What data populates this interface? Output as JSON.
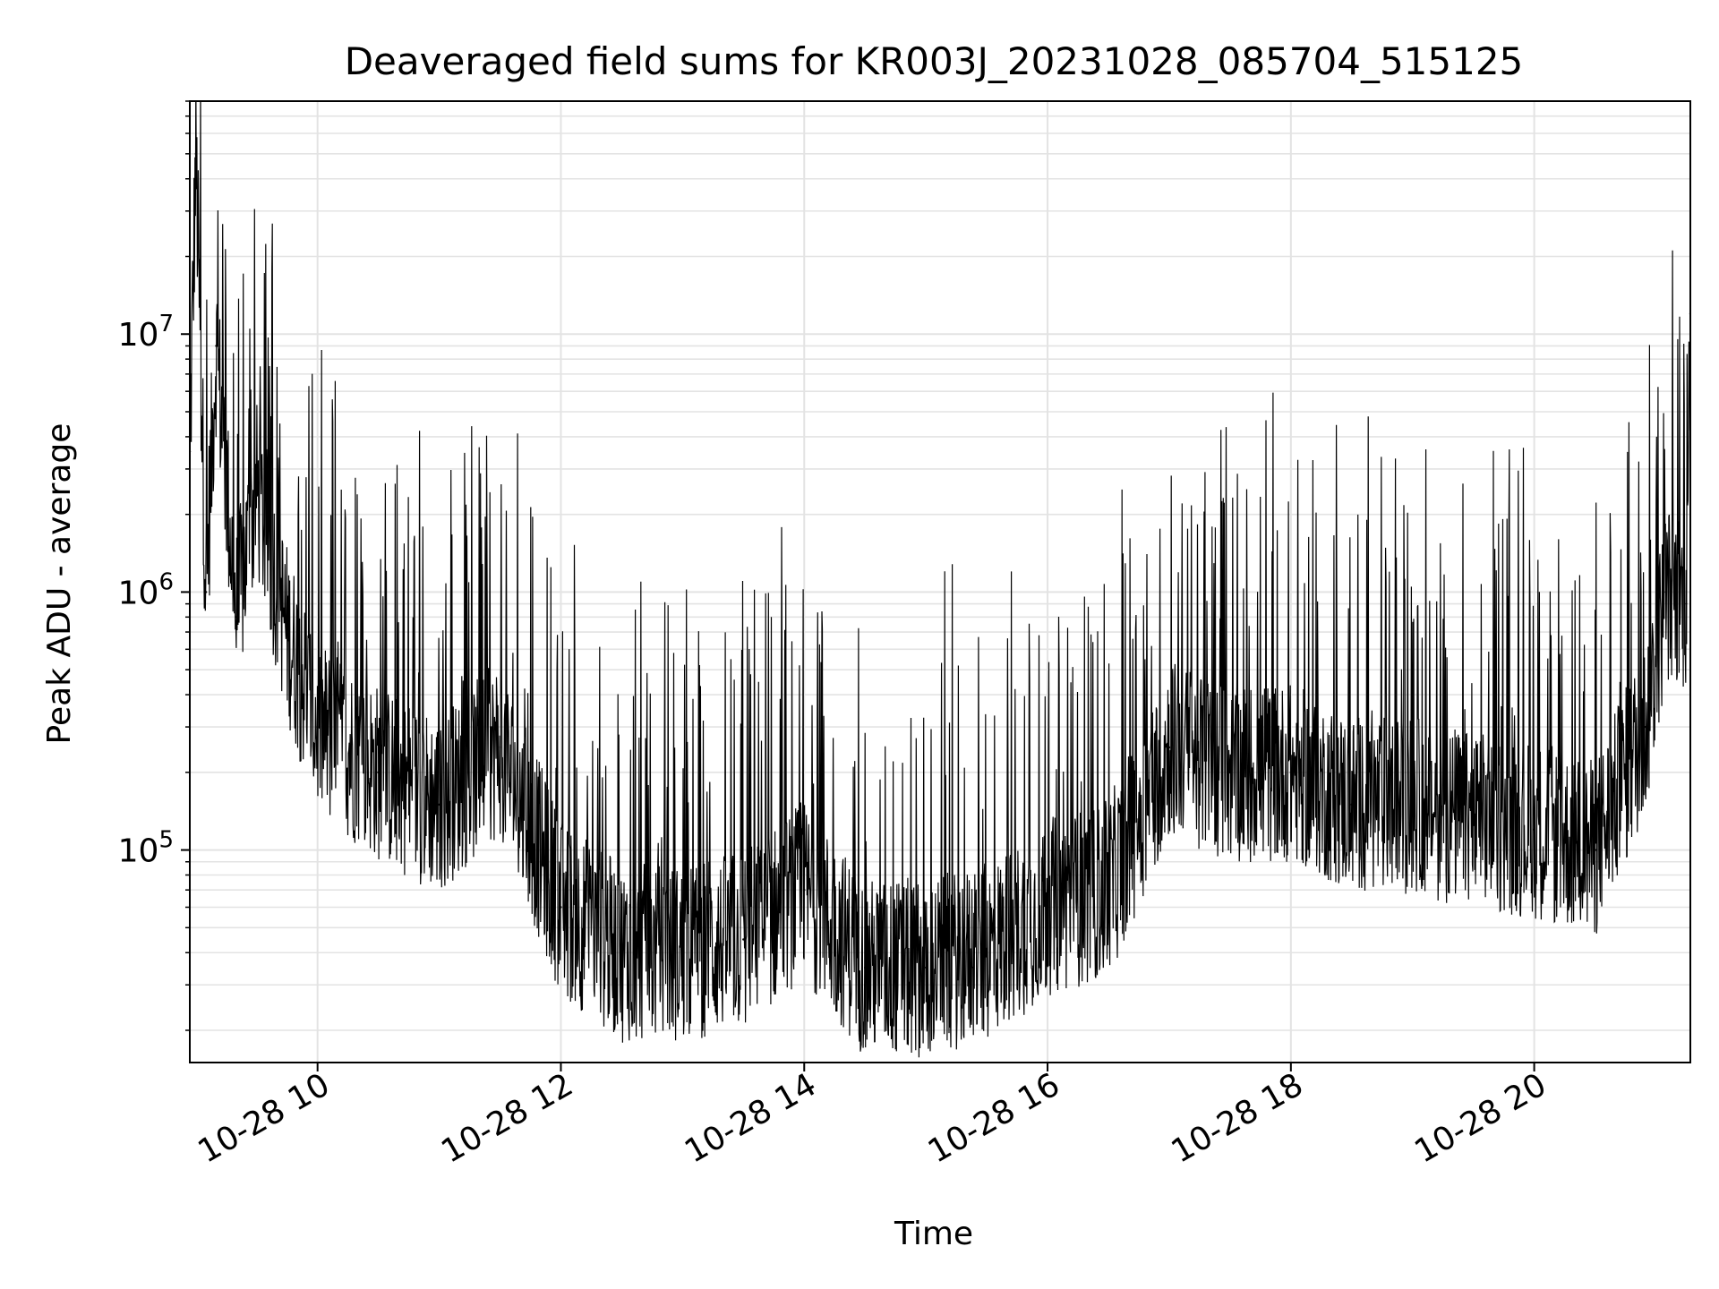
{
  "chart_data": {
    "type": "line",
    "title": "Deaveraged field sums for KR003J_20231028_085704_515125",
    "xlabel": "Time",
    "ylabel": "Peak ADU - average",
    "x_scale": "time",
    "y_scale": "log",
    "xlim": [
      "2023-10-28 08:57",
      "2023-10-28 21:17"
    ],
    "ylim": [
      15000,
      80000000
    ],
    "x_tick_labels": [
      {
        "t": "2023-10-28 10:00",
        "label": "10-28 10"
      },
      {
        "t": "2023-10-28 12:00",
        "label": "10-28 12"
      },
      {
        "t": "2023-10-28 14:00",
        "label": "10-28 14"
      },
      {
        "t": "2023-10-28 16:00",
        "label": "10-28 16"
      },
      {
        "t": "2023-10-28 18:00",
        "label": "10-28 18"
      },
      {
        "t": "2023-10-28 20:00",
        "label": "10-28 20"
      }
    ],
    "y_tick_labels": [
      {
        "value": 100000,
        "base": "10",
        "exp": "5"
      },
      {
        "value": 1000000,
        "base": "10",
        "exp": "6"
      },
      {
        "value": 10000000,
        "base": "10",
        "exp": "7"
      }
    ],
    "grid": true,
    "line_color": "#000000",
    "series": [
      {
        "values": [
          {
            "t": "2023-10-28 08:57",
            "y": 3500000
          },
          {
            "t": "2023-10-28 09:00",
            "y": 50000000
          },
          {
            "t": "2023-10-28 09:05",
            "y": 1000000
          },
          {
            "t": "2023-10-28 09:10",
            "y": 9000000
          },
          {
            "t": "2023-10-28 09:20",
            "y": 800000
          },
          {
            "t": "2023-10-28 09:30",
            "y": 2500000
          },
          {
            "t": "2023-10-28 09:45",
            "y": 700000
          },
          {
            "t": "2023-10-28 10:00",
            "y": 300000
          },
          {
            "t": "2023-10-28 10:30",
            "y": 200000
          },
          {
            "t": "2023-10-28 11:00",
            "y": 150000
          },
          {
            "t": "2023-10-28 11:30",
            "y": 250000
          },
          {
            "t": "2023-10-28 12:00",
            "y": 60000
          },
          {
            "t": "2023-10-28 12:30",
            "y": 40000
          },
          {
            "t": "2023-10-28 13:00",
            "y": 40000
          },
          {
            "t": "2023-10-28 13:30",
            "y": 45000
          },
          {
            "t": "2023-10-28 14:00",
            "y": 70000
          },
          {
            "t": "2023-10-28 14:30",
            "y": 35000
          },
          {
            "t": "2023-10-28 15:00",
            "y": 35000
          },
          {
            "t": "2023-10-28 15:30",
            "y": 40000
          },
          {
            "t": "2023-10-28 16:00",
            "y": 60000
          },
          {
            "t": "2023-10-28 16:30",
            "y": 70000
          },
          {
            "t": "2023-10-28 17:00",
            "y": 250000
          },
          {
            "t": "2023-10-28 17:30",
            "y": 200000
          },
          {
            "t": "2023-10-28 18:00",
            "y": 200000
          },
          {
            "t": "2023-10-28 18:30",
            "y": 150000
          },
          {
            "t": "2023-10-28 19:00",
            "y": 150000
          },
          {
            "t": "2023-10-28 19:30",
            "y": 130000
          },
          {
            "t": "2023-10-28 20:00",
            "y": 120000
          },
          {
            "t": "2023-10-28 20:30",
            "y": 100000
          },
          {
            "t": "2023-10-28 20:55",
            "y": 300000
          },
          {
            "t": "2023-10-28 21:05",
            "y": 1000000
          },
          {
            "t": "2023-10-28 21:15",
            "y": 900000
          },
          {
            "t": "2023-10-28 21:17",
            "y": 12000000
          }
        ]
      }
    ]
  }
}
